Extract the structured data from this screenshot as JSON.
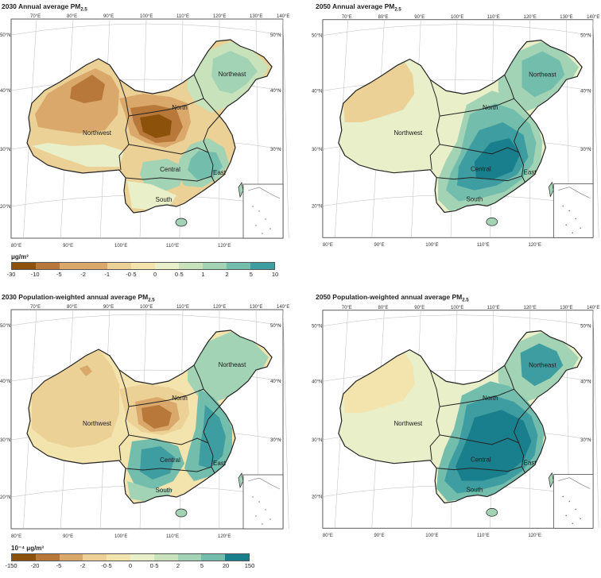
{
  "panels": [
    {
      "title": "2030 Annual average PM",
      "sub": "2.5",
      "scheme": "a"
    },
    {
      "title": "2050 Annual average PM",
      "sub": "2.5",
      "scheme": "b"
    },
    {
      "title": "2030 Population-weighted annual average PM",
      "sub": "2.5",
      "scheme": "c"
    },
    {
      "title": "2050 Population-weighted annual average PM",
      "sub": "2.5",
      "scheme": "d"
    }
  ],
  "regions": [
    "Northeast",
    "North",
    "Northwest",
    "Central",
    "East",
    "South"
  ],
  "lat_labels": [
    "50°N",
    "40°N",
    "30°N",
    "20°N"
  ],
  "lon_labels": [
    "70°E",
    "80°E",
    "90°E",
    "100°E",
    "110°E",
    "120°E",
    "130°E",
    "140°E"
  ],
  "lon_bottom_labels": [
    "80°E",
    "90°E",
    "100°E",
    "110°E",
    "120°E"
  ],
  "legends": [
    {
      "unit": "μg/m³",
      "ticks": [
        "-30",
        "-10",
        "-5",
        "-2",
        "-1",
        "-0·5",
        "0",
        "0·5",
        "1",
        "2",
        "5",
        "10"
      ]
    },
    {
      "unit": "10⁻⁴ μg/m³",
      "ticks": [
        "-150",
        "-20",
        "-5",
        "-2",
        "-0·5",
        "0",
        "0·5",
        "2",
        "5",
        "20",
        "150"
      ]
    }
  ],
  "colors": {
    "c_neg4": "#8c510a",
    "c_neg3": "#b8783a",
    "c_neg2": "#d9a86a",
    "c_neg1": "#ecd197",
    "c_neg0": "#f3e3ad",
    "c_zero": "#e9efc8",
    "c_pos0": "#c8e3bb",
    "c_pos1": "#a2d3b4",
    "c_pos2": "#73bdad",
    "c_pos3": "#3e9da0",
    "c_pos4": "#1a7f8c"
  }
}
